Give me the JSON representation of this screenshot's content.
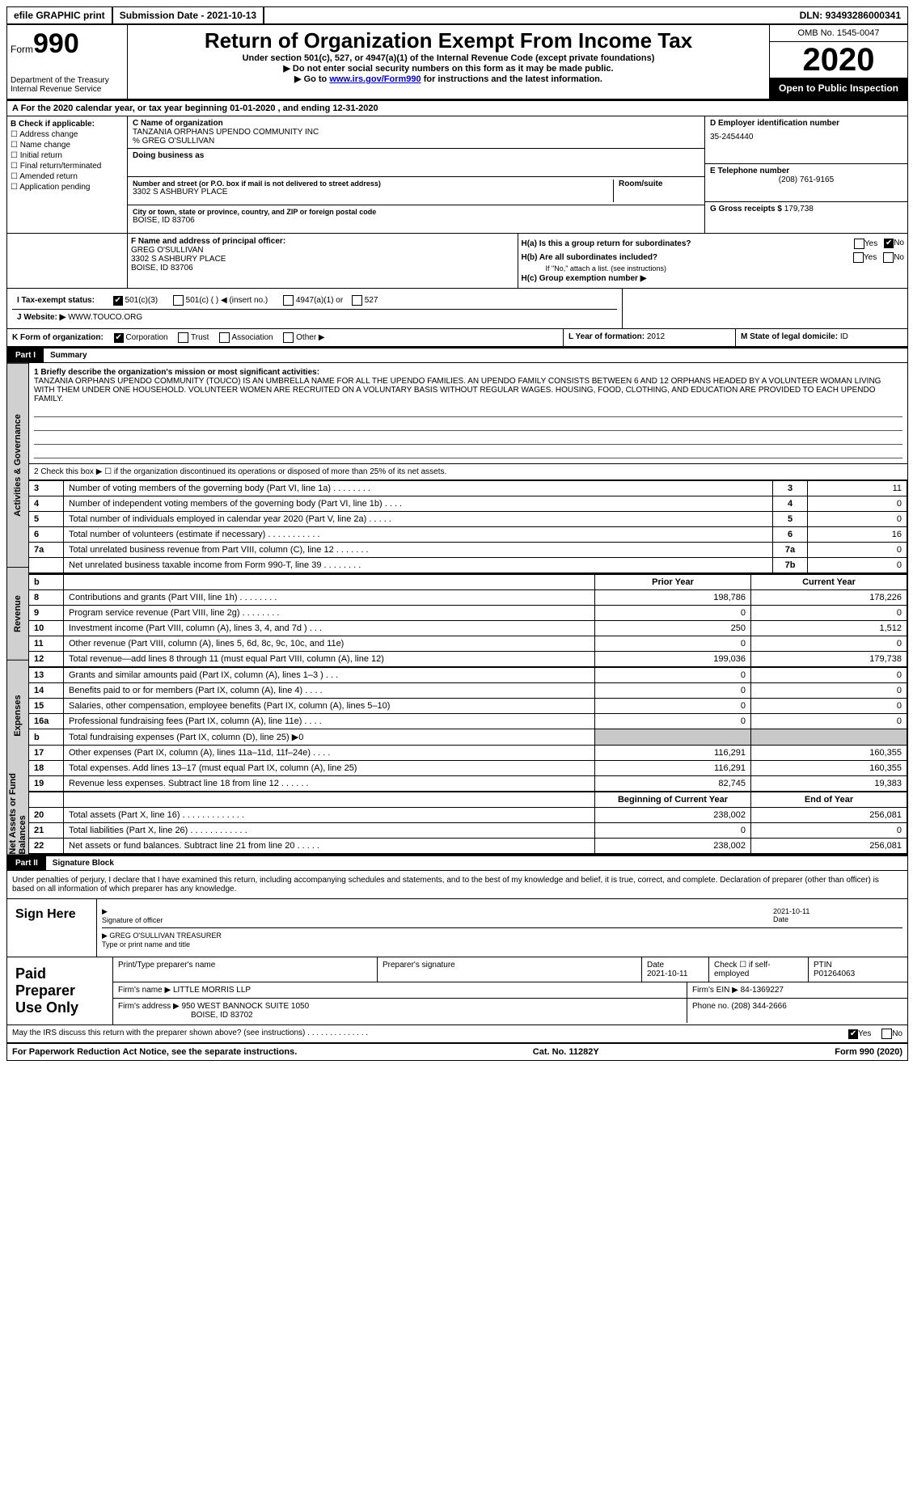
{
  "top": {
    "efile": "efile GRAPHIC print",
    "sub_date_label": "Submission Date - ",
    "sub_date": "2021-10-13",
    "dln_label": "DLN: ",
    "dln": "93493286000341"
  },
  "header": {
    "form_word": "Form",
    "form_num": "990",
    "dept": "Department of the Treasury",
    "irs": "Internal Revenue Service",
    "title": "Return of Organization Exempt From Income Tax",
    "sub1": "Under section 501(c), 527, or 4947(a)(1) of the Internal Revenue Code (except private foundations)",
    "sub2": "▶ Do not enter social security numbers on this form as it may be made public.",
    "sub3_pre": "▶ Go to ",
    "sub3_link": "www.irs.gov/Form990",
    "sub3_post": " for instructions and the latest information.",
    "omb": "OMB No. 1545-0047",
    "year": "2020",
    "open": "Open to Public Inspection"
  },
  "row_a": "A For the 2020 calendar year, or tax year beginning 01-01-2020   , and ending 12-31-2020",
  "col_b": {
    "hdr": "B Check if applicable:",
    "opts": [
      "Address change",
      "Name change",
      "Initial return",
      "Final return/terminated",
      "Amended return",
      "Application pending"
    ]
  },
  "col_c": {
    "name_lbl": "C Name of organization",
    "name1": "TANZANIA ORPHANS UPENDO COMMUNITY INC",
    "name2": "% GREG O'SULLIVAN",
    "dba_lbl": "Doing business as",
    "street_lbl": "Number and street (or P.O. box if mail is not delivered to street address)",
    "street": "3302 S ASHBURY PLACE",
    "room_lbl": "Room/suite",
    "city_lbl": "City or town, state or province, country, and ZIP or foreign postal code",
    "city": "BOISE, ID  83706"
  },
  "col_d": {
    "ein_lbl": "D Employer identification number",
    "ein": "35-2454440",
    "tel_lbl": "E Telephone number",
    "tel": "(208) 761-9165",
    "gross_lbl": "G Gross receipts $ ",
    "gross": "179,738"
  },
  "row_f": {
    "f_lbl": "F  Name and address of principal officer:",
    "f_name": "GREG O'SULLIVAN",
    "f_addr1": "3302 S ASHBURY PLACE",
    "f_addr2": "BOISE, ID  83706",
    "ha_lbl": "H(a)  Is this a group return for subordinates?",
    "hb_lbl": "H(b)  Are all subordinates included?",
    "hb_note": "If \"No,\" attach a list. (see instructions)",
    "hc_lbl": "H(c)  Group exemption number ▶",
    "yes": "Yes",
    "no": "No"
  },
  "row_i": {
    "lbl": "I   Tax-exempt status:",
    "o1": "501(c)(3)",
    "o2": "501(c) (  ) ◀ (insert no.)",
    "o3": "4947(a)(1) or",
    "o4": "527"
  },
  "row_j": {
    "lbl": "J   Website: ▶  ",
    "val": "WWW.TOUCO.ORG"
  },
  "row_k": {
    "lbl": "K Form of organization:",
    "o1": "Corporation",
    "o2": "Trust",
    "o3": "Association",
    "o4": "Other ▶",
    "l_lbl": "L Year of formation: ",
    "l_val": "2012",
    "m_lbl": "M State of legal domicile: ",
    "m_val": "ID"
  },
  "part1": {
    "hdr": "Part I",
    "title": "Summary",
    "line1_lbl": "1  Briefly describe the organization's mission or most significant activities:",
    "mission": "TANZANIA ORPHANS UPENDO COMMUNITY (TOUCO) IS AN UMBRELLA NAME FOR ALL THE UPENDO FAMILIES. AN UPENDO FAMILY CONSISTS BETWEEN 6 AND 12 ORPHANS HEADED BY A VOLUNTEER WOMAN LIVING WITH THEM UNDER ONE HOUSEHOLD. VOLUNTEER WOMEN ARE RECRUITED ON A VOLUNTARY BASIS WITHOUT REGULAR WAGES. HOUSING, FOOD, CLOTHING, AND EDUCATION ARE PROVIDED TO EACH UPENDO FAMILY.",
    "line2": "2   Check this box  ▶ ☐  if the organization discontinued its operations or disposed of more than 25% of its net assets.",
    "vtabs": [
      "Activities & Governance",
      "Revenue",
      "Expenses",
      "Net Assets or Fund Balances"
    ]
  },
  "gov_rows": [
    {
      "n": "3",
      "d": "Number of voting members of the governing body (Part VI, line 1a)   .    .    .    .    .    .    .    .",
      "k": "3",
      "v": "11"
    },
    {
      "n": "4",
      "d": "Number of independent voting members of the governing body (Part VI, line 1b)    .    .    .    .",
      "k": "4",
      "v": "0"
    },
    {
      "n": "5",
      "d": "Total number of individuals employed in calendar year 2020 (Part V, line 2a)   .    .    .    .    .",
      "k": "5",
      "v": "0"
    },
    {
      "n": "6",
      "d": "Total number of volunteers (estimate if necessary)   .    .    .    .    .    .    .    .    .    .    .",
      "k": "6",
      "v": "16"
    },
    {
      "n": "7a",
      "d": "Total unrelated business revenue from Part VIII, column (C), line 12    .    .    .    .    .    .    .",
      "k": "7a",
      "v": "0"
    },
    {
      "n": "",
      "d": "Net unrelated business taxable income from Form 990-T, line 39    .    .    .    .    .    .    .    .",
      "k": "7b",
      "v": "0"
    }
  ],
  "two_col_hdrs": {
    "prior": "Prior Year",
    "current": "Current Year",
    "boy": "Beginning of Current Year",
    "eoy": "End of Year"
  },
  "rev_rows": [
    {
      "n": "8",
      "d": "Contributions and grants (Part VIII, line 1h)    .    .    .    .    .    .    .    .",
      "p": "198,786",
      "c": "178,226"
    },
    {
      "n": "9",
      "d": "Program service revenue (Part VIII, line 2g)    .    .    .    .    .    .    .    .",
      "p": "0",
      "c": "0"
    },
    {
      "n": "10",
      "d": "Investment income (Part VIII, column (A), lines 3, 4, and 7d )   .    .    .",
      "p": "250",
      "c": "1,512"
    },
    {
      "n": "11",
      "d": "Other revenue (Part VIII, column (A), lines 5, 6d, 8c, 9c, 10c, and 11e)",
      "p": "0",
      "c": "0"
    },
    {
      "n": "12",
      "d": "Total revenue—add lines 8 through 11 (must equal Part VIII, column (A), line 12)",
      "p": "199,036",
      "c": "179,738"
    }
  ],
  "exp_rows": [
    {
      "n": "13",
      "d": "Grants and similar amounts paid (Part IX, column (A), lines 1–3 )  .    .    .",
      "p": "0",
      "c": "0"
    },
    {
      "n": "14",
      "d": "Benefits paid to or for members (Part IX, column (A), line 4)    .    .    .    .",
      "p": "0",
      "c": "0"
    },
    {
      "n": "15",
      "d": "Salaries, other compensation, employee benefits (Part IX, column (A), lines 5–10)",
      "p": "0",
      "c": "0"
    },
    {
      "n": "16a",
      "d": "Professional fundraising fees (Part IX, column (A), line 11e)   .    .    .    .",
      "p": "0",
      "c": "0"
    },
    {
      "n": "b",
      "d": "Total fundraising expenses (Part IX, column (D), line 25) ▶0",
      "p": "",
      "c": "",
      "shade": true
    },
    {
      "n": "17",
      "d": "Other expenses (Part IX, column (A), lines 11a–11d, 11f–24e)    .    .    .    .",
      "p": "116,291",
      "c": "160,355"
    },
    {
      "n": "18",
      "d": "Total expenses. Add lines 13–17 (must equal Part IX, column (A), line 25)",
      "p": "116,291",
      "c": "160,355"
    },
    {
      "n": "19",
      "d": "Revenue less expenses. Subtract line 18 from line 12    .    .    .    .    .    .",
      "p": "82,745",
      "c": "19,383"
    }
  ],
  "net_rows": [
    {
      "n": "20",
      "d": "Total assets (Part X, line 16)   .    .    .    .    .    .    .    .    .    .    .    .    .",
      "p": "238,002",
      "c": "256,081"
    },
    {
      "n": "21",
      "d": "Total liabilities (Part X, line 26)  .    .    .    .    .    .    .    .    .    .    .    .",
      "p": "0",
      "c": "0"
    },
    {
      "n": "22",
      "d": "Net assets or fund balances. Subtract line 21 from line 20    .    .    .    .    .",
      "p": "238,002",
      "c": "256,081"
    }
  ],
  "part2": {
    "hdr": "Part II",
    "title": "Signature Block",
    "decl": "Under penalties of perjury, I declare that I have examined this return, including accompanying schedules and statements, and to the best of my knowledge and belief, it is true, correct, and complete. Declaration of preparer (other than officer) is based on all information of which preparer has any knowledge."
  },
  "sign": {
    "here": "Sign Here",
    "sig_of": "Signature of officer",
    "date_lbl": "Date",
    "date": "2021-10-11",
    "name": "GREG O'SULLIVAN  TREASURER",
    "name_lbl": "Type or print name and title"
  },
  "prep": {
    "label": "Paid Preparer Use Only",
    "h1": "Print/Type preparer's name",
    "h2": "Preparer's signature",
    "h3": "Date",
    "h3v": "2021-10-11",
    "h4": "Check ☐ if self-employed",
    "h5_lbl": "PTIN",
    "h5": "P01264063",
    "firm_lbl": "Firm's name    ▶ ",
    "firm": "LITTLE MORRIS LLP",
    "ein_lbl": "Firm's EIN ▶ ",
    "ein": "84-1369227",
    "addr_lbl": "Firm's address ▶ ",
    "addr1": "950 WEST BANNOCK SUITE 1050",
    "addr2": "BOISE, ID  83702",
    "phone_lbl": "Phone no. ",
    "phone": "(208) 344-2666",
    "discuss": "May the IRS discuss this return with the preparer shown above? (see instructions)    .    .    .    .    .    .    .    .    .    .    .    .    .    ."
  },
  "footer": {
    "l": "For Paperwork Reduction Act Notice, see the separate instructions.",
    "c": "Cat. No. 11282Y",
    "r": "Form 990 (2020)"
  }
}
